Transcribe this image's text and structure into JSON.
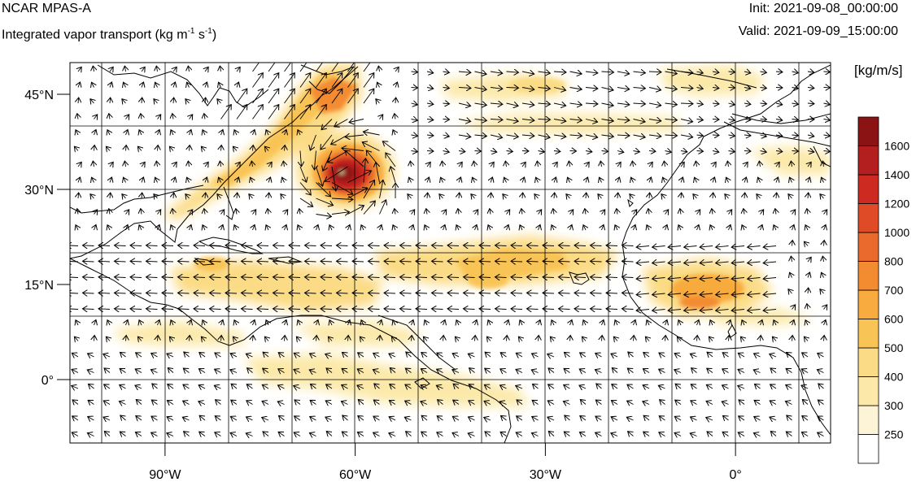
{
  "header": {
    "model": "NCAR MPAS-A",
    "field": "Integrated vapor transport (kg m",
    "field_exp1": "-1",
    "field_mid": " s",
    "field_exp2": "-1",
    "field_end": ")",
    "init": "Init: 2021-09-08_00:00:00",
    "valid": "Valid: 2021-09-09_15:00:00"
  },
  "map": {
    "lon_range": [
      -105,
      15
    ],
    "lat_range": [
      -10,
      50
    ],
    "lat_ticks": [
      {
        "value": 45,
        "label": "45°N"
      },
      {
        "value": 30,
        "label": "30°N"
      },
      {
        "value": 15,
        "label": "15°N"
      },
      {
        "value": 0,
        "label": "0°"
      }
    ],
    "lon_ticks": [
      {
        "value": -90,
        "label": "90°W"
      },
      {
        "value": -60,
        "label": "60°W"
      },
      {
        "value": -30,
        "label": "30°W"
      },
      {
        "value": 0,
        "label": "0°"
      }
    ],
    "gridlines": true
  },
  "colorbar": {
    "title": "[kg/m/s]",
    "levels": [
      "250",
      "300",
      "400",
      "500",
      "600",
      "700",
      "800",
      "1000",
      "1200",
      "1400",
      "1600"
    ],
    "colors": [
      "#ffffff",
      "#fdf4d8",
      "#fce9a9",
      "#fbdb85",
      "#f9c456",
      "#f8ab3e",
      "#f38b30",
      "#e96a2c",
      "#de4b26",
      "#cd2a22",
      "#b31e1e",
      "#8c1313"
    ]
  }
}
